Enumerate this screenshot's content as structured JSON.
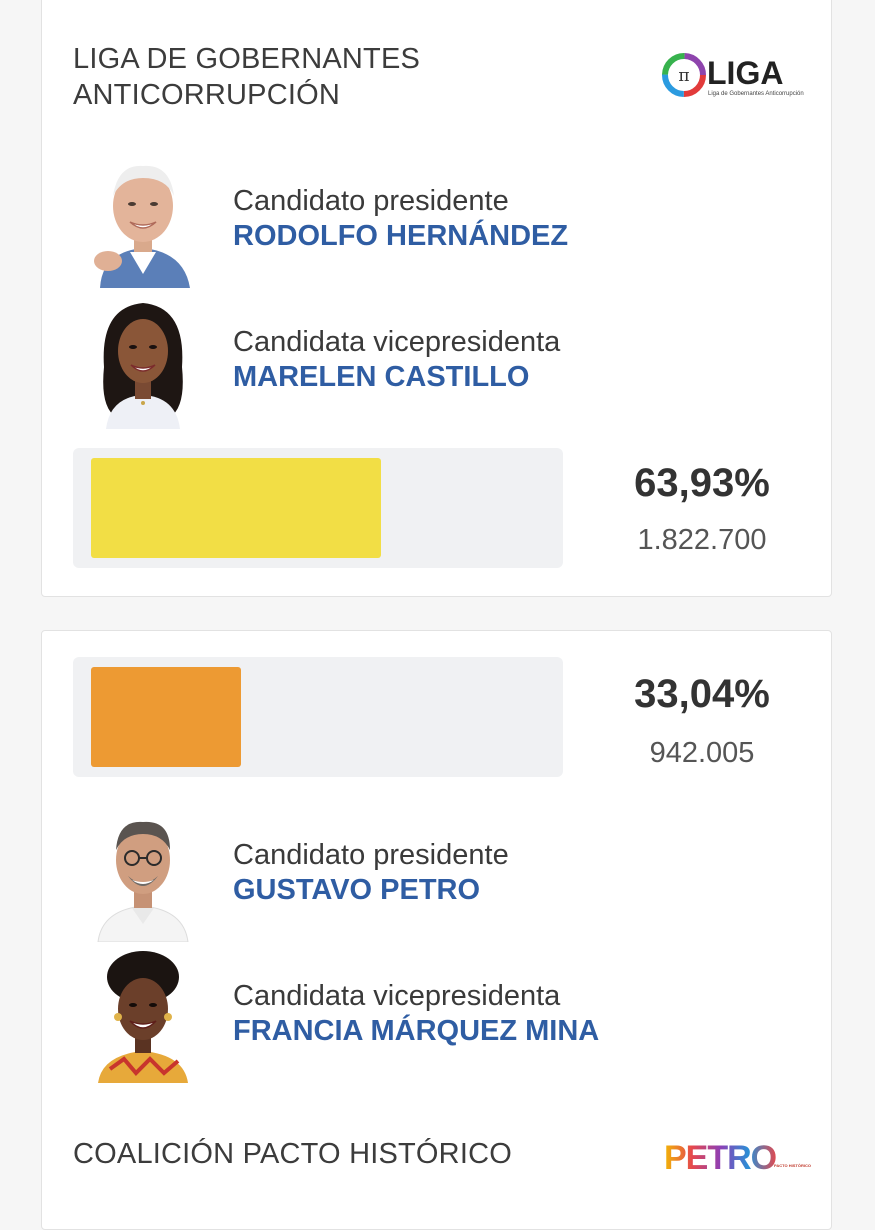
{
  "party1": {
    "name": "LIGA DE GOBERNANTES ANTICORRUPCIÓN",
    "logo": {
      "word": "LIGA",
      "tagline": "Liga de Gobernantes Anticorrupción",
      "symbol": "π"
    },
    "president": {
      "role": "Candidato presidente",
      "name": "RODOLFO HERNÁNDEZ"
    },
    "vice": {
      "role": "Candidata vicepresidenta",
      "name": "MARELEN CASTILLO"
    },
    "percent": "63,93%",
    "votes": "1.822.700",
    "bar_fraction": 0.6393,
    "bar_color": "#f2de45"
  },
  "party2": {
    "name": "COALICIÓN PACTO HISTÓRICO",
    "logo": {
      "word": "PETRO",
      "tagline": "PACTO HISTÓRICO"
    },
    "president": {
      "role": "Candidato presidente",
      "name": "GUSTAVO PETRO"
    },
    "vice": {
      "role": "Candidata vicepresidenta",
      "name": "FRANCIA MÁRQUEZ MINA"
    },
    "percent": "33,04%",
    "votes": "942.005",
    "bar_fraction": 0.3304,
    "bar_color": "#ed9a33"
  },
  "colors": {
    "name_blue": "#2f5da3",
    "track": "#f0f1f3"
  }
}
